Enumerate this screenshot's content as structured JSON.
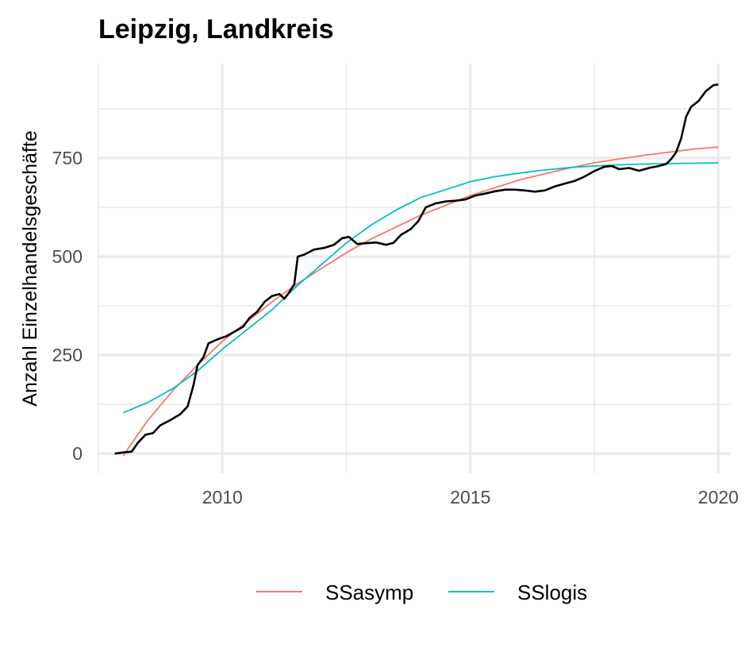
{
  "chart_data": {
    "type": "line",
    "title": "Leipzig, Landkreis",
    "xlabel": "",
    "ylabel": "Anzahl Einzelhandelsgeschäfte",
    "xlim": [
      2007.5,
      2020.25
    ],
    "ylim": [
      -50,
      990
    ],
    "x_ticks": [
      2010,
      2015,
      2020
    ],
    "y_ticks": [
      0,
      250,
      500,
      750
    ],
    "grid": true,
    "legend_position": "bottom",
    "observed": {
      "color": "#000000",
      "points": [
        [
          2007.83,
          0
        ],
        [
          2008.0,
          3
        ],
        [
          2008.17,
          5
        ],
        [
          2008.3,
          28
        ],
        [
          2008.45,
          48
        ],
        [
          2008.6,
          52
        ],
        [
          2008.75,
          72
        ],
        [
          2008.95,
          85
        ],
        [
          2009.15,
          100
        ],
        [
          2009.3,
          120
        ],
        [
          2009.42,
          175
        ],
        [
          2009.5,
          225
        ],
        [
          2009.62,
          245
        ],
        [
          2009.72,
          280
        ],
        [
          2009.9,
          290
        ],
        [
          2010.08,
          298
        ],
        [
          2010.25,
          310
        ],
        [
          2010.42,
          322
        ],
        [
          2010.55,
          345
        ],
        [
          2010.7,
          360
        ],
        [
          2010.85,
          385
        ],
        [
          2011.0,
          400
        ],
        [
          2011.15,
          405
        ],
        [
          2011.25,
          393
        ],
        [
          2011.35,
          410
        ],
        [
          2011.45,
          430
        ],
        [
          2011.52,
          500
        ],
        [
          2011.65,
          505
        ],
        [
          2011.85,
          518
        ],
        [
          2012.05,
          522
        ],
        [
          2012.25,
          530
        ],
        [
          2012.42,
          547
        ],
        [
          2012.55,
          550
        ],
        [
          2012.72,
          532
        ],
        [
          2012.9,
          534
        ],
        [
          2013.1,
          536
        ],
        [
          2013.3,
          530
        ],
        [
          2013.45,
          535
        ],
        [
          2013.6,
          555
        ],
        [
          2013.8,
          570
        ],
        [
          2013.95,
          590
        ],
        [
          2014.1,
          625
        ],
        [
          2014.3,
          635
        ],
        [
          2014.5,
          640
        ],
        [
          2014.7,
          642
        ],
        [
          2014.9,
          645
        ],
        [
          2015.1,
          655
        ],
        [
          2015.3,
          660
        ],
        [
          2015.5,
          666
        ],
        [
          2015.7,
          670
        ],
        [
          2015.9,
          670
        ],
        [
          2016.1,
          668
        ],
        [
          2016.3,
          665
        ],
        [
          2016.5,
          668
        ],
        [
          2016.7,
          678
        ],
        [
          2016.9,
          685
        ],
        [
          2017.1,
          692
        ],
        [
          2017.3,
          703
        ],
        [
          2017.5,
          717
        ],
        [
          2017.7,
          728
        ],
        [
          2017.85,
          730
        ],
        [
          2018.0,
          722
        ],
        [
          2018.2,
          725
        ],
        [
          2018.4,
          718
        ],
        [
          2018.6,
          725
        ],
        [
          2018.8,
          730
        ],
        [
          2018.95,
          735
        ],
        [
          2019.05,
          748
        ],
        [
          2019.15,
          765
        ],
        [
          2019.25,
          800
        ],
        [
          2019.35,
          855
        ],
        [
          2019.45,
          880
        ],
        [
          2019.6,
          895
        ],
        [
          2019.75,
          920
        ],
        [
          2019.9,
          935
        ],
        [
          2020.0,
          937
        ]
      ]
    },
    "series": [
      {
        "name": "SSasymp",
        "color": "#F8766D",
        "x": [
          2008.0,
          2008.5,
          2009.0,
          2009.5,
          2010.0,
          2010.5,
          2011.0,
          2011.5,
          2012.0,
          2012.5,
          2013.0,
          2013.5,
          2014.0,
          2014.5,
          2015.0,
          2015.5,
          2016.0,
          2016.5,
          2017.0,
          2017.5,
          2018.0,
          2018.5,
          2019.0,
          2019.5,
          2020.0
        ],
        "values": [
          -5,
          85,
          160,
          225,
          285,
          335,
          385,
          430,
          470,
          510,
          545,
          575,
          605,
          630,
          655,
          675,
          695,
          710,
          725,
          738,
          748,
          757,
          765,
          773,
          778
        ]
      },
      {
        "name": "SSlogis",
        "color": "#00BFC4",
        "x": [
          2008.0,
          2008.5,
          2009.0,
          2009.5,
          2010.0,
          2010.5,
          2011.0,
          2011.5,
          2012.0,
          2012.5,
          2013.0,
          2013.5,
          2014.0,
          2014.5,
          2015.0,
          2015.5,
          2016.0,
          2016.5,
          2017.0,
          2017.5,
          2018.0,
          2018.5,
          2019.0,
          2019.5,
          2020.0
        ],
        "values": [
          104,
          130,
          165,
          210,
          265,
          315,
          365,
          425,
          480,
          535,
          580,
          618,
          650,
          670,
          690,
          703,
          712,
          720,
          726,
          730,
          733,
          735,
          736,
          737,
          738
        ]
      }
    ]
  }
}
